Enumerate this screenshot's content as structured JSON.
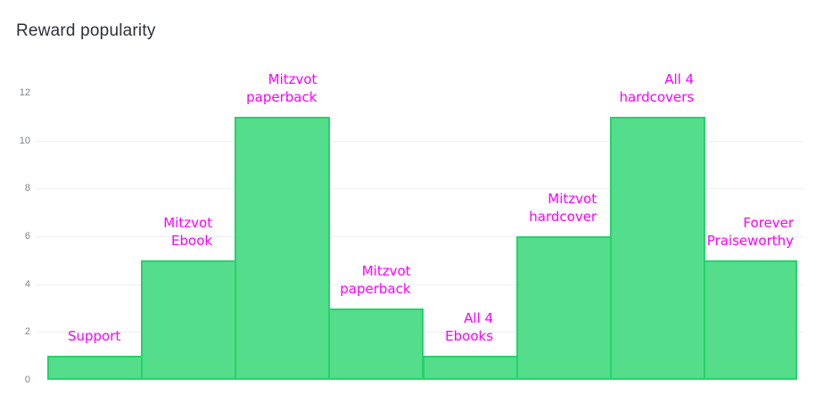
{
  "widget": {
    "title": "Reward popularity"
  },
  "chart_data": {
    "type": "bar",
    "title": "Reward popularity",
    "categories": [
      "Support",
      "Mitzvot Ebook",
      "Mitzvot paperback",
      "Mitzvot paperback",
      "All 4 Ebooks",
      "Mitzvot hardcover",
      "All 4 hardcovers",
      "Forever Praiseworthy"
    ],
    "values": [
      1,
      5,
      11,
      3,
      1,
      6,
      11,
      5
    ],
    "bar_label_lines": [
      [
        "Support"
      ],
      [
        "Mitzvot",
        "Ebook"
      ],
      [
        "Mitzvot",
        "paperback"
      ],
      [
        "Mitzvot",
        "paperback"
      ],
      [
        "All 4",
        "Ebooks"
      ],
      [
        "Mitzvot",
        "hardcover"
      ],
      [
        "All 4",
        "hardcovers"
      ],
      [
        "Forever",
        "Praiseworthy"
      ]
    ],
    "xlabel": "",
    "ylabel": "",
    "yticks": [
      0,
      2,
      4,
      6,
      8,
      10,
      12
    ],
    "ylim": [
      0,
      12
    ],
    "grid": true,
    "legend": "none",
    "colors": {
      "bar_fill": "#54dd8b",
      "bar_border": "#26d26c",
      "bar_label": "#fa00ff",
      "grid_line": "#eef0f2",
      "tick_label": "#7f848c",
      "title": "#2d3138"
    }
  }
}
